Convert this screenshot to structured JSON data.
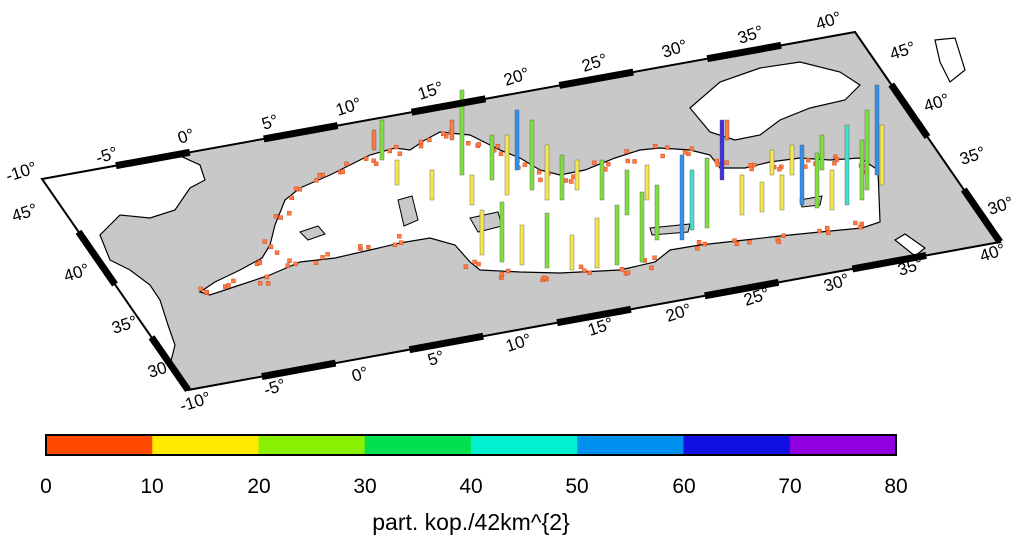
{
  "map": {
    "colors": {
      "land": "#c8c8c8",
      "sea": "#ffffff",
      "frame": "#000000",
      "coast": "#000000"
    },
    "lon_ticks_top": [
      "-10°",
      "-5°",
      "0°",
      "5°",
      "10°",
      "15°",
      "20°",
      "25°",
      "30°",
      "35°",
      "40°"
    ],
    "lon_ticks_bottom": [
      "-10°",
      "-5°",
      "0°",
      "5°",
      "10°",
      "15°",
      "20°",
      "25°",
      "30°",
      "35°",
      "40°"
    ],
    "lat_ticks_left": [
      "45°",
      "40°",
      "35°",
      "30°"
    ],
    "lat_ticks_right": [
      "45°",
      "40°",
      "35°",
      "30°"
    ]
  },
  "colorbar": {
    "tick_labels": [
      "0",
      "10",
      "20",
      "30",
      "40",
      "50",
      "60",
      "70",
      "80"
    ],
    "colors": [
      "#ff4800",
      "#ffea00",
      "#88f000",
      "#00e050",
      "#00f0d0",
      "#0090f0",
      "#1010e0",
      "#9000e0"
    ],
    "title": "part. kop./42km^{2}"
  },
  "bar_colors": {
    "low": "#ff7a45",
    "yellow": "#f5e84a",
    "green": "#7ee040",
    "cyan": "#40e0d0",
    "blue": "#3090f0",
    "violet": "#4030e0"
  }
}
